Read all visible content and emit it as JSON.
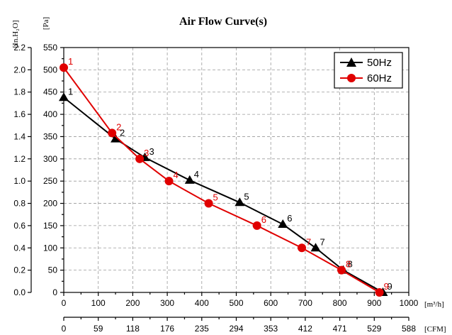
{
  "chart_data": {
    "type": "line",
    "title": "Air Flow Curve(s)",
    "x_primary": {
      "unit": "[m³/h]",
      "ticks": [
        0,
        100,
        200,
        300,
        400,
        500,
        600,
        700,
        800,
        900,
        1000
      ],
      "range": [
        0,
        1000
      ]
    },
    "x_secondary": {
      "unit": "[CFM]",
      "tick_labels": [
        "0",
        "59",
        "118",
        "176",
        "235",
        "294",
        "353",
        "412",
        "471",
        "529",
        "588"
      ]
    },
    "y_primary": {
      "unit": "[Pa]",
      "ticks": [
        0,
        50,
        100,
        150,
        200,
        250,
        300,
        350,
        400,
        450,
        500,
        550
      ],
      "range": [
        0,
        550
      ]
    },
    "y_secondary": {
      "unit": "[In.H₂O]",
      "tick_labels": [
        "0.0",
        "0.2",
        "0.4",
        "0.6",
        "0.8",
        "1.0",
        "1.2",
        "1.4",
        "1.6",
        "1.8",
        "2.0",
        "2.2"
      ]
    },
    "grid": true,
    "legend_position": "top-right",
    "series": [
      {
        "name": "50Hz",
        "color": "#000000",
        "marker": "triangle",
        "points": [
          {
            "label": "1",
            "x": 0,
            "y": 438
          },
          {
            "label": "2",
            "x": 150,
            "y": 345
          },
          {
            "label": "3",
            "x": 235,
            "y": 303
          },
          {
            "label": "4",
            "x": 365,
            "y": 252
          },
          {
            "label": "5",
            "x": 510,
            "y": 202
          },
          {
            "label": "6",
            "x": 635,
            "y": 153
          },
          {
            "label": "7",
            "x": 730,
            "y": 100
          },
          {
            "label": "8",
            "x": 810,
            "y": 50
          },
          {
            "label": "9",
            "x": 925,
            "y": 0
          }
        ]
      },
      {
        "name": "60Hz",
        "color": "#e00000",
        "marker": "circle",
        "points": [
          {
            "label": "1",
            "x": 0,
            "y": 505
          },
          {
            "label": "2",
            "x": 140,
            "y": 358
          },
          {
            "label": "3",
            "x": 220,
            "y": 300
          },
          {
            "label": "4",
            "x": 305,
            "y": 250
          },
          {
            "label": "5",
            "x": 420,
            "y": 200
          },
          {
            "label": "6",
            "x": 560,
            "y": 150
          },
          {
            "label": "7",
            "x": 690,
            "y": 100
          },
          {
            "label": "8",
            "x": 805,
            "y": 50
          },
          {
            "label": "9",
            "x": 915,
            "y": 0
          }
        ]
      }
    ]
  }
}
